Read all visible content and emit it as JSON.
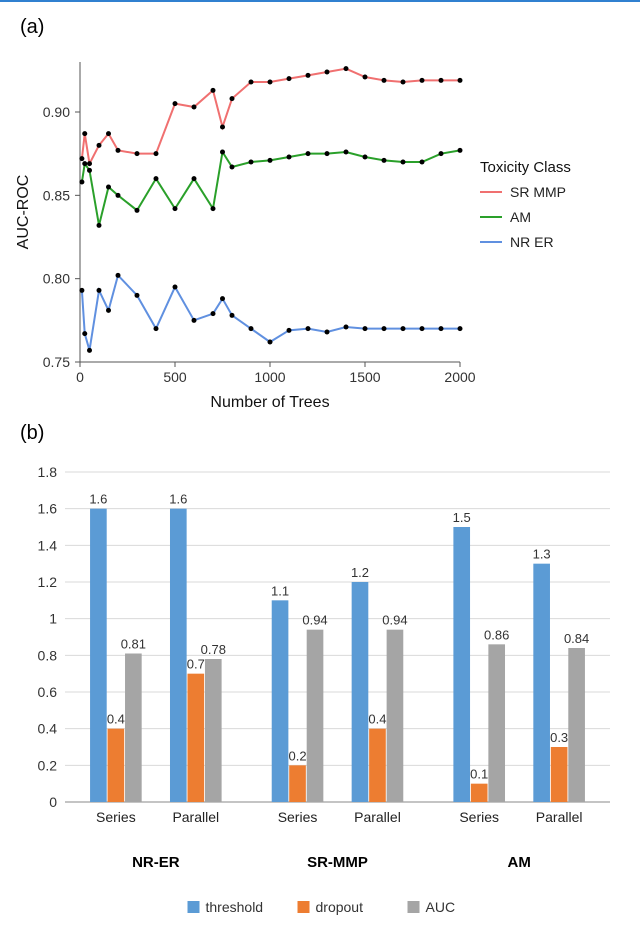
{
  "panel_a": {
    "label": "(a)",
    "type": "line",
    "x_axis_title": "Number of Trees",
    "y_axis_title": "AUC-ROC",
    "legend_title": "Toxicity Class",
    "xlim": [
      0,
      2000
    ],
    "ylim": [
      0.75,
      0.93
    ],
    "xticks": [
      0,
      500,
      1000,
      1500,
      2000
    ],
    "yticks": [
      0.75,
      0.8,
      0.85,
      0.9
    ],
    "ytick_labels": [
      "0.75",
      "0.80",
      "0.85",
      "0.90"
    ],
    "background_color": "#ffffff",
    "axis_color": "#555555",
    "tick_fontsize": 14,
    "axis_title_fontsize": 16,
    "point_color": "#000000",
    "point_radius": 2.5,
    "line_width": 2,
    "series": [
      {
        "name": "SR_MMP",
        "label": "SR  MMP",
        "color": "#f07070",
        "x": [
          10,
          25,
          50,
          100,
          150,
          200,
          300,
          400,
          500,
          600,
          700,
          750,
          800,
          900,
          1000,
          1100,
          1200,
          1300,
          1400,
          1500,
          1600,
          1700,
          1800,
          1900,
          2000
        ],
        "y": [
          0.872,
          0.887,
          0.869,
          0.88,
          0.887,
          0.877,
          0.875,
          0.875,
          0.905,
          0.903,
          0.913,
          0.891,
          0.908,
          0.918,
          0.918,
          0.92,
          0.922,
          0.924,
          0.926,
          0.921,
          0.919,
          0.918,
          0.919,
          0.919,
          0.919
        ]
      },
      {
        "name": "AM",
        "label": "AM",
        "color": "#2aa02a",
        "x": [
          10,
          25,
          50,
          100,
          150,
          200,
          300,
          400,
          500,
          600,
          700,
          750,
          800,
          900,
          1000,
          1100,
          1200,
          1300,
          1400,
          1500,
          1600,
          1700,
          1800,
          1900,
          2000
        ],
        "y": [
          0.858,
          0.869,
          0.865,
          0.832,
          0.855,
          0.85,
          0.841,
          0.86,
          0.842,
          0.86,
          0.842,
          0.876,
          0.867,
          0.87,
          0.871,
          0.873,
          0.875,
          0.875,
          0.876,
          0.873,
          0.871,
          0.87,
          0.87,
          0.875,
          0.877
        ]
      },
      {
        "name": "NR_ER",
        "label": "NR  ER",
        "color": "#6090e0",
        "x": [
          10,
          25,
          50,
          100,
          150,
          200,
          300,
          400,
          500,
          600,
          700,
          750,
          800,
          900,
          1000,
          1100,
          1200,
          1300,
          1400,
          1500,
          1600,
          1700,
          1800,
          1900,
          2000
        ],
        "y": [
          0.793,
          0.767,
          0.757,
          0.793,
          0.781,
          0.802,
          0.79,
          0.77,
          0.795,
          0.775,
          0.779,
          0.788,
          0.778,
          0.77,
          0.762,
          0.769,
          0.77,
          0.768,
          0.771,
          0.77,
          0.77,
          0.77,
          0.77,
          0.77,
          0.77
        ]
      }
    ]
  },
  "panel_b": {
    "label": "(b)",
    "type": "bar",
    "ylim": [
      0,
      1.8
    ],
    "yticks": [
      0,
      0.2,
      0.4,
      0.6,
      0.8,
      1,
      1.2,
      1.4,
      1.6,
      1.8
    ],
    "background_color": "#ffffff",
    "grid_color": "#d9d9d9",
    "bar_width_ratio": 0.22,
    "value_label_fontsize": 13,
    "group_label_fontsize": 14,
    "group_title_fontsize": 15,
    "legend_fontsize": 14,
    "series_legend": [
      {
        "key": "threshold",
        "label": "threshold",
        "color": "#5b9bd5"
      },
      {
        "key": "dropout",
        "label": "dropout",
        "color": "#ed7d31"
      },
      {
        "key": "AUC",
        "label": "AUC",
        "color": "#a5a5a5"
      }
    ],
    "groups": [
      {
        "title": "NR-ER",
        "subgroups": [
          {
            "label": "Series",
            "threshold": 1.6,
            "dropout": 0.4,
            "AUC": 0.81,
            "labels": {
              "threshold": "1.6",
              "dropout": "0.4",
              "AUC": "0.81"
            }
          },
          {
            "label": "Parallel",
            "threshold": 1.6,
            "dropout": 0.7,
            "AUC": 0.78,
            "labels": {
              "threshold": "1.6",
              "dropout": "0.7",
              "AUC": "0.78"
            }
          }
        ]
      },
      {
        "title": "SR-MMP",
        "subgroups": [
          {
            "label": "Series",
            "threshold": 1.1,
            "dropout": 0.2,
            "AUC": 0.94,
            "labels": {
              "threshold": "1.1",
              "dropout": "0.2",
              "AUC": "0.94"
            }
          },
          {
            "label": "Parallel",
            "threshold": 1.2,
            "dropout": 0.4,
            "AUC": 0.94,
            "labels": {
              "threshold": "1.2",
              "dropout": "0.4",
              "AUC": "0.94"
            }
          }
        ]
      },
      {
        "title": "AM",
        "subgroups": [
          {
            "label": "Series",
            "threshold": 1.5,
            "dropout": 0.1,
            "AUC": 0.86,
            "labels": {
              "threshold": "1.5",
              "dropout": "0.1",
              "AUC": "0.86"
            }
          },
          {
            "label": "Parallel",
            "threshold": 1.3,
            "dropout": 0.3,
            "AUC": 0.84,
            "labels": {
              "threshold": "1.3",
              "dropout": "0.3",
              "AUC": "0.84"
            }
          }
        ]
      }
    ]
  }
}
